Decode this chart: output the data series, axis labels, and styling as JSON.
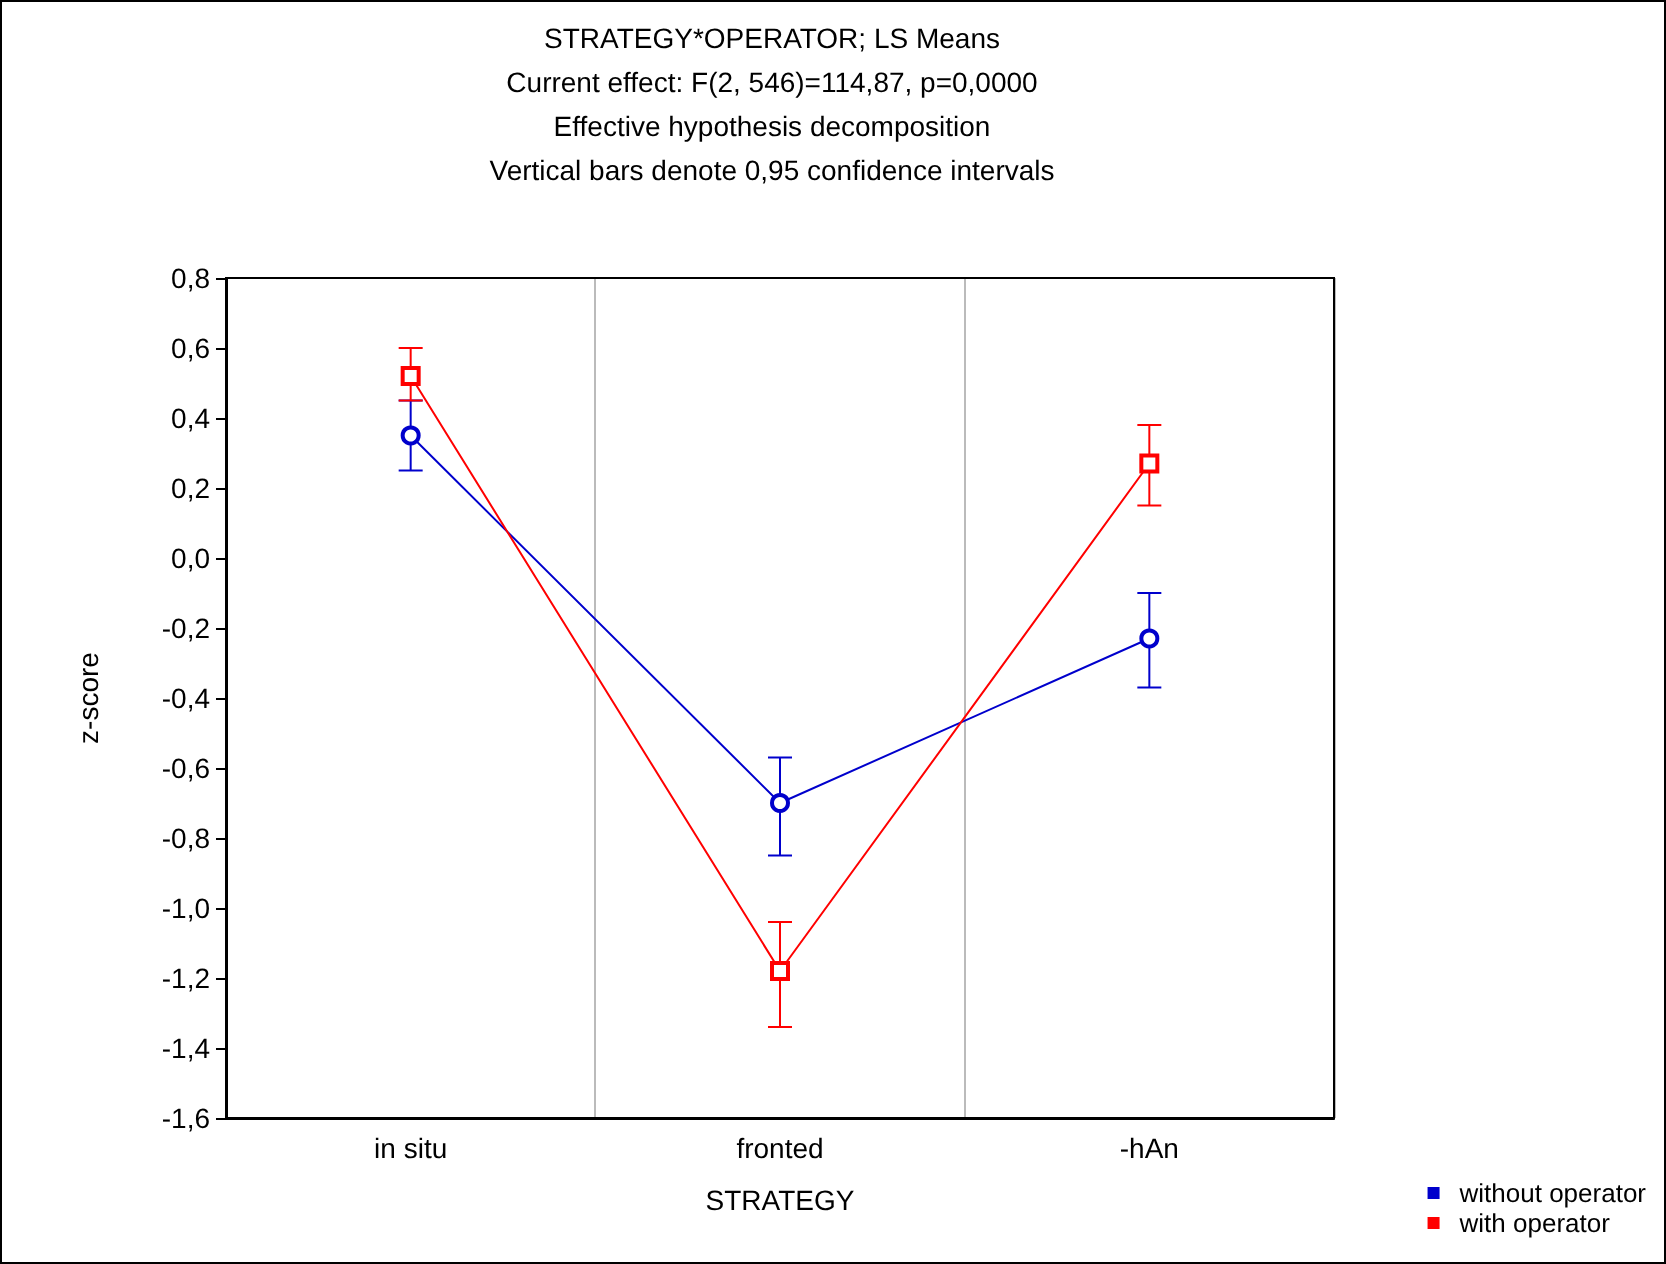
{
  "chart_data": {
    "type": "line",
    "title": "STRATEGY*OPERATOR; LS Means",
    "subtitle": "Current effect: F(2, 546)=114,87, p=0,0000\nEffective hypothesis decomposition\nVertical bars denote 0,95 confidence intervals",
    "xlabel": "STRATEGY",
    "ylabel": "z-score",
    "categories": [
      "in situ",
      "fronted",
      "-hAn"
    ],
    "series": [
      {
        "name": "without operator",
        "color": "#0000cc",
        "marker": "circle",
        "values": [
          0.35,
          -0.7,
          -0.23
        ],
        "errors": [
          [
            0.25,
            0.45
          ],
          [
            -0.85,
            -0.57
          ],
          [
            -0.37,
            -0.1
          ]
        ]
      },
      {
        "name": "with operator",
        "color": "#ff0000",
        "marker": "square",
        "values": [
          0.52,
          -1.18,
          0.27
        ],
        "errors": [
          [
            0.45,
            0.6
          ],
          [
            -1.34,
            -1.04
          ],
          [
            0.15,
            0.38
          ]
        ]
      }
    ],
    "ylim": [
      -1.6,
      0.8
    ],
    "yticks": [
      {
        "value": -1.6,
        "label": "-1,6"
      },
      {
        "value": -1.4,
        "label": "-1,4"
      },
      {
        "value": -1.2,
        "label": "-1,2"
      },
      {
        "value": -1,
        "label": "-1,0"
      },
      {
        "value": -0.8,
        "label": "-0,8"
      },
      {
        "value": -0.6,
        "label": "-0,6"
      },
      {
        "value": -0.4,
        "label": "-0,4"
      },
      {
        "value": -0.2,
        "label": "-0,2"
      },
      {
        "value": 0,
        "label": "0,0"
      },
      {
        "value": 0.2,
        "label": "0,2"
      },
      {
        "value": 0.4,
        "label": "0,4"
      },
      {
        "value": 0.6,
        "label": "0,6"
      },
      {
        "value": 0.8,
        "label": "0,8"
      }
    ],
    "grid": "x",
    "legend": "bottom right",
    "line_style": "solid"
  }
}
